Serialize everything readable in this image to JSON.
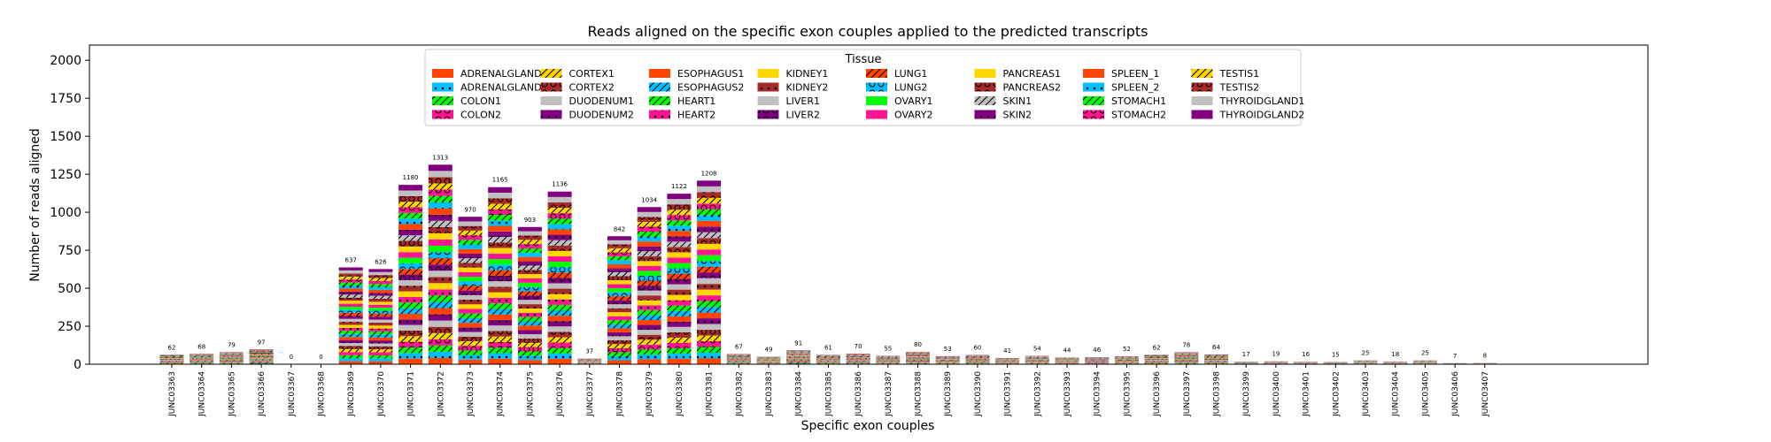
{
  "chart_data": {
    "type": "bar",
    "stacked": true,
    "title": "Reads aligned on the specific exon couples applied to the predicted transcripts",
    "xlabel": "Specific exon couples",
    "ylabel": "Number of reads aligned",
    "ylim": [
      0,
      2100
    ],
    "yticks": [
      0,
      250,
      500,
      750,
      1000,
      1250,
      1500,
      1750,
      2000
    ],
    "legend": {
      "title": "Tissue",
      "placement": "top-center",
      "columns": 8
    },
    "categories": [
      "JUNC03363",
      "JUNC03364",
      "JUNC03365",
      "JUNC03366",
      "JUNC03367",
      "JUNC03368",
      "JUNC03369",
      "JUNC03370",
      "JUNC03371",
      "JUNC03372",
      "JUNC03373",
      "JUNC03374",
      "JUNC03375",
      "JUNC03376",
      "JUNC03377",
      "JUNC03378",
      "JUNC03379",
      "JUNC03380",
      "JUNC03381",
      "JUNC03382",
      "JUNC03383",
      "JUNC03384",
      "JUNC03385",
      "JUNC03386",
      "JUNC03387",
      "JUNC03388",
      "JUNC03389",
      "JUNC03390",
      "JUNC03391",
      "JUNC03392",
      "JUNC03393",
      "JUNC03394",
      "JUNC03395",
      "JUNC03396",
      "JUNC03397",
      "JUNC03398",
      "JUNC03399",
      "JUNC03400",
      "JUNC03401",
      "JUNC03402",
      "JUNC03403",
      "JUNC03404",
      "JUNC03405",
      "JUNC03406",
      "JUNC03407"
    ],
    "totals": [
      62,
      68,
      79,
      97,
      0,
      0,
      637,
      626,
      1180,
      1313,
      970,
      1165,
      903,
      1136,
      37,
      842,
      1034,
      1122,
      1208,
      67,
      49,
      91,
      61,
      70,
      55,
      80,
      53,
      60,
      41,
      54,
      44,
      46,
      52,
      62,
      78,
      64,
      17,
      19,
      16,
      15,
      25,
      18,
      25,
      7,
      8
    ],
    "series": [
      {
        "name": "ADRENALGLAND1",
        "color": "#ff4500",
        "pattern": "none"
      },
      {
        "name": "ADRENALGLAND2",
        "color": "#00bfff",
        "pattern": "dots"
      },
      {
        "name": "COLON1",
        "color": "#00ff00",
        "pattern": "slash"
      },
      {
        "name": "COLON2",
        "color": "#ff1493",
        "pattern": "circles"
      },
      {
        "name": "CORTEX1",
        "color": "#ffd700",
        "pattern": "slash"
      },
      {
        "name": "CORTEX2",
        "color": "#a52a2a",
        "pattern": "circles"
      },
      {
        "name": "DUODENUM1",
        "color": "#c0c0c0",
        "pattern": "none"
      },
      {
        "name": "DUODENUM2",
        "color": "#800080",
        "pattern": "dots"
      },
      {
        "name": "ESOPHAGUS1",
        "color": "#ff4500",
        "pattern": "none"
      },
      {
        "name": "ESOPHAGUS2",
        "color": "#00bfff",
        "pattern": "slash"
      },
      {
        "name": "HEART1",
        "color": "#00ff00",
        "pattern": "slash"
      },
      {
        "name": "HEART2",
        "color": "#ff1493",
        "pattern": "dots"
      },
      {
        "name": "KIDNEY1",
        "color": "#ffd700",
        "pattern": "none"
      },
      {
        "name": "KIDNEY2",
        "color": "#a52a2a",
        "pattern": "dots"
      },
      {
        "name": "LIVER1",
        "color": "#c0c0c0",
        "pattern": "none"
      },
      {
        "name": "LIVER2",
        "color": "#800080",
        "pattern": "circles"
      },
      {
        "name": "LUNG1",
        "color": "#ff4500",
        "pattern": "slash"
      },
      {
        "name": "LUNG2",
        "color": "#00bfff",
        "pattern": "circles"
      },
      {
        "name": "OVARY1",
        "color": "#00ff00",
        "pattern": "none"
      },
      {
        "name": "OVARY2",
        "color": "#ff1493",
        "pattern": "none"
      },
      {
        "name": "PANCREAS1",
        "color": "#ffd700",
        "pattern": "none"
      },
      {
        "name": "PANCREAS2",
        "color": "#a52a2a",
        "pattern": "circles"
      },
      {
        "name": "SKIN1",
        "color": "#c0c0c0",
        "pattern": "slash"
      },
      {
        "name": "SKIN2",
        "color": "#800080",
        "pattern": "dots"
      },
      {
        "name": "SPLEEN_1",
        "color": "#ff4500",
        "pattern": "none"
      },
      {
        "name": "SPLEEN_2",
        "color": "#00bfff",
        "pattern": "dots"
      },
      {
        "name": "STOMACH1",
        "color": "#00ff00",
        "pattern": "slash"
      },
      {
        "name": "STOMACH2",
        "color": "#ff1493",
        "pattern": "circles"
      },
      {
        "name": "TESTIS1",
        "color": "#ffd700",
        "pattern": "slash"
      },
      {
        "name": "TESTIS2",
        "color": "#a52a2a",
        "pattern": "circles"
      },
      {
        "name": "THYROIDGLAND1",
        "color": "#c0c0c0",
        "pattern": "none"
      },
      {
        "name": "THYROIDGLAND2",
        "color": "#800080",
        "pattern": "none"
      }
    ]
  }
}
